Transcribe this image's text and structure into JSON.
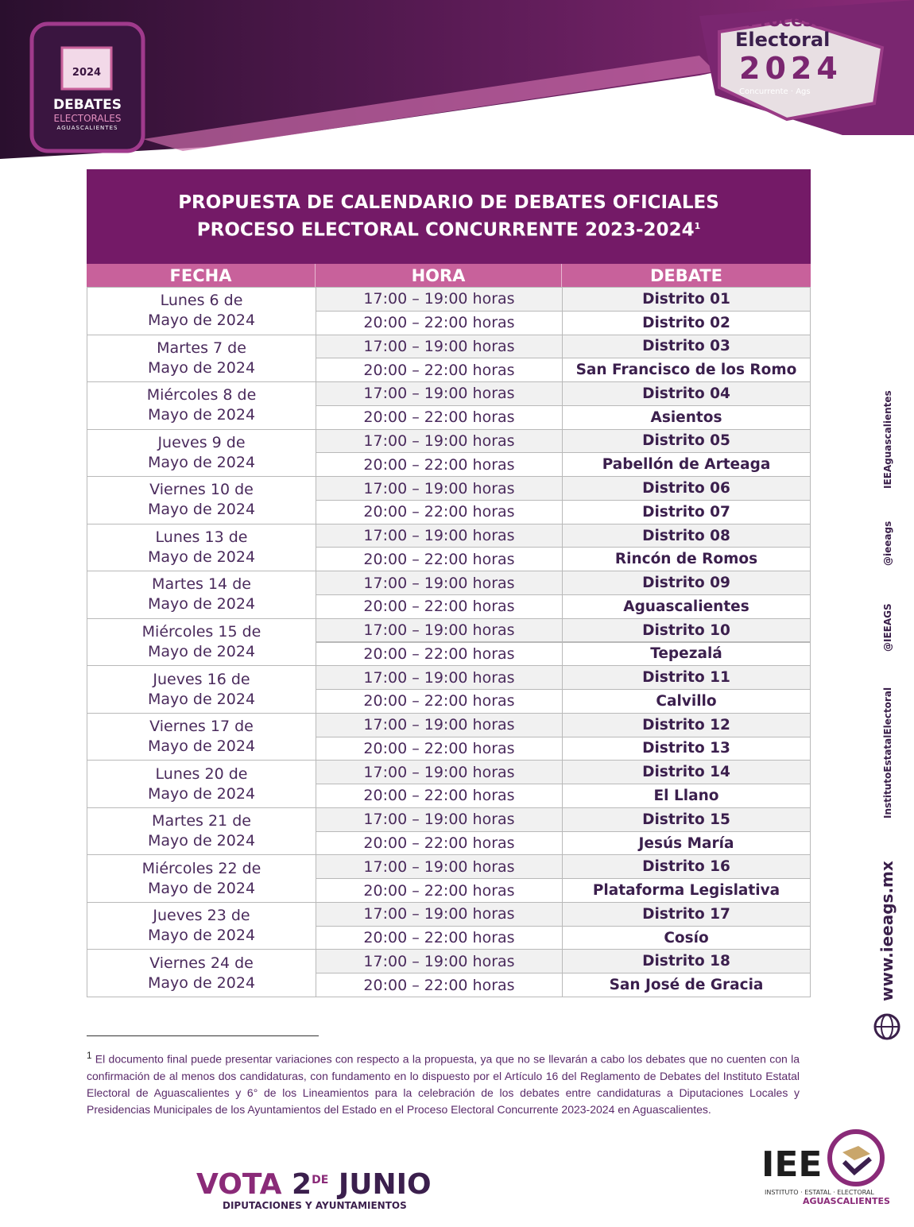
{
  "header": {
    "left_logo": {
      "year": "2024",
      "title": "DEBATES",
      "subtitle": "ELECTORALES",
      "place": "AGUASCALIENTES"
    },
    "right_logo": {
      "line1": "Proceso",
      "line2": "Electoral",
      "year": "2024",
      "tag": "Concurrente · Ags"
    }
  },
  "table": {
    "title": [
      "PROPUESTA DE CALENDARIO DE DEBATES OFICIALES",
      "PROCESO ELECTORAL CONCURRENTE 2023-2024"
    ],
    "title_note": "1",
    "columns": [
      "FECHA",
      "HORA",
      "DEBATE"
    ],
    "rows": [
      {
        "date": [
          "Lunes 6 de",
          "Mayo de 2024"
        ],
        "slots": [
          {
            "time": "17:00 – 19:00 horas",
            "debate": "Distrito 01"
          },
          {
            "time": "20:00 – 22:00 horas",
            "debate": "Distrito 02"
          }
        ]
      },
      {
        "date": [
          "Martes 7 de",
          "Mayo de 2024"
        ],
        "slots": [
          {
            "time": "17:00 – 19:00 horas",
            "debate": "Distrito 03"
          },
          {
            "time": "20:00 – 22:00 horas",
            "debate": "San Francisco de los Romo"
          }
        ]
      },
      {
        "date": [
          "Miércoles 8 de",
          "Mayo de 2024"
        ],
        "slots": [
          {
            "time": "17:00 – 19:00 horas",
            "debate": "Distrito 04"
          },
          {
            "time": "20:00 – 22:00 horas",
            "debate": "Asientos"
          }
        ]
      },
      {
        "date": [
          "Jueves 9 de",
          "Mayo de 2024"
        ],
        "slots": [
          {
            "time": "17:00 – 19:00 horas",
            "debate": "Distrito 05"
          },
          {
            "time": "20:00 – 22:00 horas",
            "debate": "Pabellón de Arteaga"
          }
        ]
      },
      {
        "date": [
          "Viernes 10 de",
          "Mayo de 2024"
        ],
        "slots": [
          {
            "time": "17:00 – 19:00 horas",
            "debate": "Distrito 06"
          },
          {
            "time": "20:00 – 22:00 horas",
            "debate": "Distrito 07"
          }
        ]
      },
      {
        "date": [
          "Lunes 13 de",
          "Mayo de 2024"
        ],
        "slots": [
          {
            "time": "17:00 – 19:00 horas",
            "debate": "Distrito 08"
          },
          {
            "time": "20:00 – 22:00 horas",
            "debate": "Rincón de Romos"
          }
        ]
      },
      {
        "date": [
          "Martes 14 de",
          "Mayo de 2024"
        ],
        "slots": [
          {
            "time": "17:00 – 19:00 horas",
            "debate": "Distrito 09"
          },
          {
            "time": "20:00 – 22:00 horas",
            "debate": "Aguascalientes"
          }
        ]
      },
      {
        "date": [
          "Miércoles 15 de",
          "Mayo de 2024"
        ],
        "slots": [
          {
            "time": "17:00 – 19:00 horas",
            "debate": "Distrito 10"
          },
          {
            "time": "20:00 – 22:00 horas",
            "debate": "Tepezalá"
          }
        ]
      },
      {
        "date": [
          "Jueves 16 de",
          "Mayo de 2024"
        ],
        "slots": [
          {
            "time": "17:00 – 19:00 horas",
            "debate": "Distrito 11"
          },
          {
            "time": "20:00 – 22:00 horas",
            "debate": "Calvillo"
          }
        ]
      },
      {
        "date": [
          "Viernes 17 de",
          "Mayo de 2024"
        ],
        "slots": [
          {
            "time": "17:00 – 19:00 horas",
            "debate": "Distrito 12"
          },
          {
            "time": "20:00 – 22:00 horas",
            "debate": "Distrito 13"
          }
        ]
      },
      {
        "date": [
          "Lunes 20 de",
          "Mayo de 2024"
        ],
        "slots": [
          {
            "time": "17:00 – 19:00 horas",
            "debate": "Distrito 14"
          },
          {
            "time": "20:00 – 22:00 horas",
            "debate": "El Llano"
          }
        ]
      },
      {
        "date": [
          "Martes 21 de",
          "Mayo de 2024"
        ],
        "slots": [
          {
            "time": "17:00 – 19:00 horas",
            "debate": "Distrito 15"
          },
          {
            "time": "20:00 – 22:00 horas",
            "debate": "Jesús María"
          }
        ]
      },
      {
        "date": [
          "Miércoles 22 de",
          "Mayo de 2024"
        ],
        "slots": [
          {
            "time": "17:00 – 19:00 horas",
            "debate": "Distrito 16"
          },
          {
            "time": "20:00 – 22:00 horas",
            "debate": "Plataforma Legislativa"
          }
        ]
      },
      {
        "date": [
          "Jueves 23 de",
          "Mayo de 2024"
        ],
        "slots": [
          {
            "time": "17:00 – 19:00 horas",
            "debate": "Distrito 17"
          },
          {
            "time": "20:00 – 22:00 horas",
            "debate": "Cosío"
          }
        ]
      },
      {
        "date": [
          "Viernes 24 de",
          "Mayo de 2024"
        ],
        "slots": [
          {
            "time": "17:00 – 19:00 horas",
            "debate": "Distrito 18"
          },
          {
            "time": "20:00 – 22:00 horas",
            "debate": "San José de Gracia"
          }
        ]
      }
    ]
  },
  "footnote": {
    "marker": "1",
    "text": "El documento final puede presentar variaciones con respecto a la propuesta, ya que no se llevarán a cabo los debates que no cuenten con la confirmación de al menos dos candidaturas, con fundamento en lo dispuesto por el Artículo 16 del Reglamento de Debates del Instituto Estatal Electoral de Aguascalientes y 6° de los Lineamientos para la celebración de los debates entre candidaturas a Diputaciones Locales y Presidencias Municipales de los Ayuntamientos del Estado en el Proceso Electoral Concurrente 2023-2024 en Aguascalientes."
  },
  "social": [
    "www.ieeags.mx",
    "InstitutoEstatalElectoral",
    "@IEEAGS",
    "@ieeags",
    "IEEAguascalientes"
  ],
  "footer": {
    "vote": {
      "word": "VOTA",
      "day": "2",
      "de": "DE",
      "month": "JUNIO",
      "sub": "DIPUTACIONES Y AYUNTAMIENTOS"
    },
    "iee": {
      "acronym": "IEE",
      "name": "INSTITUTO · ESTATAL · ELECTORAL",
      "place": "AGUASCALIENTES"
    }
  }
}
